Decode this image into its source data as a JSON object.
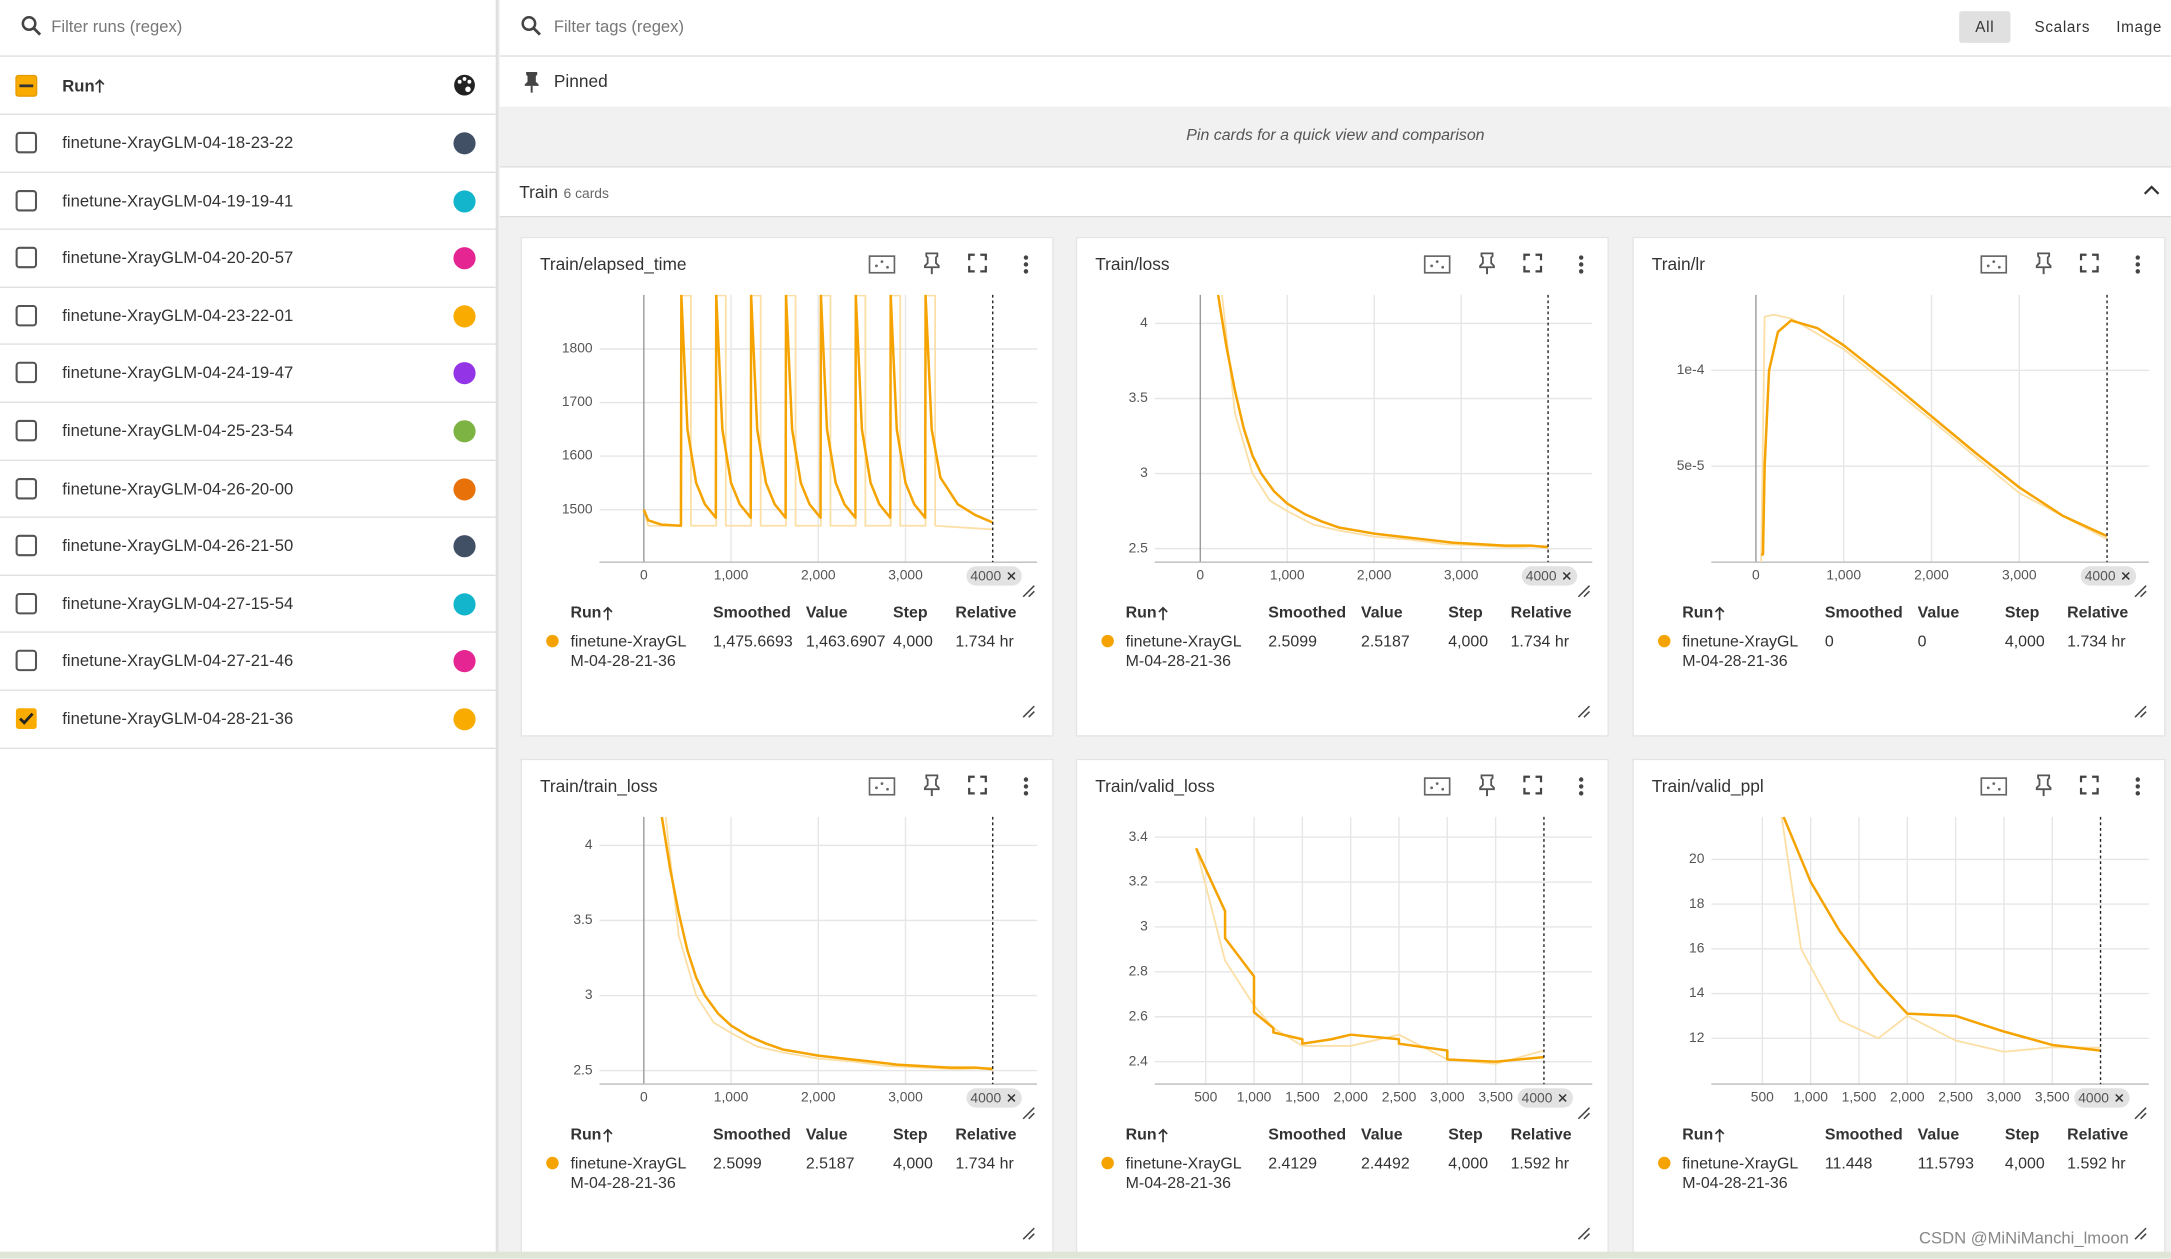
{
  "runs_panel": {
    "filter_placeholder": "Filter runs (regex)",
    "header": "Run",
    "runs": [
      {
        "name": "finetune-XrayGLM-04-18-23-22",
        "color": "#425066",
        "checked": false
      },
      {
        "name": "finetune-XrayGLM-04-19-19-41",
        "color": "#12b5cb",
        "checked": false
      },
      {
        "name": "finetune-XrayGLM-04-20-20-57",
        "color": "#e52592",
        "checked": false
      },
      {
        "name": "finetune-XrayGLM-04-23-22-01",
        "color": "#f9ab00",
        "checked": false
      },
      {
        "name": "finetune-XrayGLM-04-24-19-47",
        "color": "#9334e6",
        "checked": false
      },
      {
        "name": "finetune-XrayGLM-04-25-23-54",
        "color": "#7cb342",
        "checked": false
      },
      {
        "name": "finetune-XrayGLM-04-26-20-00",
        "color": "#e8710a",
        "checked": false
      },
      {
        "name": "finetune-XrayGLM-04-26-21-50",
        "color": "#425066",
        "checked": false
      },
      {
        "name": "finetune-XrayGLM-04-27-15-54",
        "color": "#12b5cb",
        "checked": false
      },
      {
        "name": "finetune-XrayGLM-04-27-21-46",
        "color": "#e52592",
        "checked": false
      },
      {
        "name": "finetune-XrayGLM-04-28-21-36",
        "color": "#f9ab00",
        "checked": true
      }
    ]
  },
  "tags_bar": {
    "filter_placeholder": "Filter tags (regex)",
    "tabs": [
      "All",
      "Scalars",
      "Image"
    ],
    "active_tab": 0
  },
  "pinned": {
    "title": "Pinned",
    "hint": "Pin cards for a quick view and comparison"
  },
  "group": {
    "name": "Train",
    "count": "6 cards"
  },
  "table_columns": [
    "Run",
    "Smoothed",
    "Value",
    "Step",
    "Relative"
  ],
  "cards": [
    {
      "type": "line",
      "title": "Train/elapsed_time",
      "xlim": [
        -508,
        4508
      ],
      "xticks": [
        0,
        {
          "value": 1000,
          "label": "1,000"
        },
        {
          "value": 2000,
          "label": "2,000"
        },
        {
          "value": 3000,
          "label": "3,000"
        }
      ],
      "ylim": [
        1402,
        1901
      ],
      "yticks": [
        1500,
        1600,
        1700,
        1800
      ],
      "step_marker": 4000,
      "color": "#f5a300",
      "raw_color": "#fcdfa6",
      "smoothed": {
        "x": [
          0,
          50,
          200,
          425,
          430,
          500,
          600,
          700,
          825,
          830,
          900,
          1000,
          1100,
          1225,
          1230,
          1300,
          1400,
          1500,
          1625,
          1630,
          1700,
          1800,
          1900,
          2025,
          2030,
          2100,
          2200,
          2300,
          2425,
          2430,
          2500,
          2600,
          2700,
          2825,
          2830,
          2900,
          3000,
          3100,
          3225,
          3230,
          3300,
          3400,
          3600,
          3800,
          4000
        ],
        "values": [
          1500,
          1480,
          1472,
          1470,
          1900,
          1650,
          1550,
          1510,
          1485,
          1900,
          1650,
          1550,
          1510,
          1485,
          1900,
          1650,
          1550,
          1510,
          1485,
          1900,
          1650,
          1550,
          1510,
          1485,
          1900,
          1650,
          1550,
          1510,
          1485,
          1900,
          1650,
          1550,
          1510,
          1485,
          1900,
          1650,
          1550,
          1510,
          1485,
          1900,
          1650,
          1560,
          1510,
          1490,
          1476
        ]
      },
      "raw": {
        "x": [
          0,
          50,
          430,
          430,
          540,
          540,
          830,
          830,
          940,
          940,
          1230,
          1230,
          1340,
          1340,
          1630,
          1630,
          1740,
          1740,
          2030,
          2030,
          2140,
          2140,
          2430,
          2430,
          2540,
          2540,
          2830,
          2830,
          2940,
          2940,
          3230,
          3230,
          3340,
          3340,
          4000
        ],
        "values": [
          1500,
          1470,
          1470,
          1900,
          1900,
          1470,
          1470,
          1900,
          1900,
          1470,
          1470,
          1900,
          1900,
          1470,
          1470,
          1900,
          1900,
          1470,
          1470,
          1900,
          1900,
          1470,
          1470,
          1900,
          1900,
          1470,
          1470,
          1900,
          1900,
          1470,
          1470,
          1900,
          1900,
          1470,
          1463
        ]
      },
      "row": {
        "run": "finetune-XrayGLM-04-28-21-36",
        "smoothed": "1,475.6693",
        "value": "1,463.6907",
        "step": "4,000",
        "relative": "1.734 hr"
      }
    },
    {
      "type": "line",
      "title": "Train/loss",
      "xlim": [
        -524,
        4508
      ],
      "xticks": [
        0,
        {
          "value": 1000,
          "label": "1,000"
        },
        {
          "value": 2000,
          "label": "2,000"
        },
        {
          "value": 3000,
          "label": "3,000"
        }
      ],
      "ylim": [
        2.41,
        4.19
      ],
      "yticks": [
        2.5,
        3,
        3.5,
        4
      ],
      "step_marker": 4000,
      "color": "#f5a300",
      "raw_color": "#fcdfa6",
      "smoothed": {
        "x": [
          206,
          300,
          400,
          500,
          600,
          700,
          850,
          1000,
          1200,
          1400,
          1600,
          1800,
          2000,
          2300,
          2600,
          2900,
          3200,
          3500,
          3800,
          4000
        ],
        "values": [
          4.19,
          3.85,
          3.55,
          3.3,
          3.12,
          3.0,
          2.88,
          2.8,
          2.73,
          2.68,
          2.64,
          2.62,
          2.6,
          2.58,
          2.56,
          2.54,
          2.53,
          2.52,
          2.52,
          2.51
        ]
      },
      "raw": {
        "x": [
          250,
          400,
          600,
          800,
          1000,
          1300,
          1600,
          2000,
          2400,
          2800,
          3200,
          3600,
          4000
        ],
        "values": [
          4.19,
          3.4,
          3.0,
          2.82,
          2.75,
          2.66,
          2.62,
          2.58,
          2.56,
          2.53,
          2.52,
          2.51,
          2.52
        ]
      },
      "row": {
        "run": "finetune-XrayGLM-04-28-21-36",
        "smoothed": "2.5099",
        "value": "2.5187",
        "step": "4,000",
        "relative": "1.734 hr"
      }
    },
    {
      "type": "line",
      "title": "Train/lr",
      "xlim": [
        -508,
        4476
      ],
      "xticks": [
        0,
        {
          "value": 1000,
          "label": "1,000"
        },
        {
          "value": 2000,
          "label": "2,000"
        },
        {
          "value": 3000,
          "label": "3,000"
        }
      ],
      "ylim": [
        0,
        0.0001393
      ],
      "yticks": [
        {
          "value": 5e-05,
          "label": "5e-5"
        },
        {
          "value": 0.0001,
          "label": "1e-4"
        }
      ],
      "step_marker": 4000,
      "color": "#f5a300",
      "raw_color": "#fcdfa6",
      "smoothed": {
        "x": [
          60,
          80,
          100,
          150,
          250,
          400,
          700,
          1000,
          1500,
          2000,
          2500,
          3000,
          3500,
          4000
        ],
        "values": [
          4e-06,
          4e-06,
          5e-05,
          0.0001,
          0.00012,
          0.000126,
          0.000122,
          0.000113,
          9.5e-05,
          7.6e-05,
          5.7e-05,
          3.9e-05,
          2.4e-05,
          1.36e-05
        ]
      },
      "raw": {
        "x": [
          60,
          100,
          200,
          400,
          1000,
          2000,
          3000,
          4000
        ],
        "values": [
          0,
          0.000128,
          0.000129,
          0.000127,
          0.000111,
          7.4e-05,
          3.6e-05,
          1.2e-05
        ]
      },
      "row": {
        "run": "finetune-XrayGLM-04-28-21-36",
        "smoothed": "0",
        "value": "0",
        "step": "4,000",
        "relative": "1.734 hr"
      }
    },
    {
      "type": "line",
      "title": "Train/train_loss",
      "xlim": [
        -508,
        4508
      ],
      "xticks": [
        0,
        {
          "value": 1000,
          "label": "1,000"
        },
        {
          "value": 2000,
          "label": "2,000"
        },
        {
          "value": 3000,
          "label": "3,000"
        }
      ],
      "ylim": [
        2.41,
        4.19
      ],
      "yticks": [
        2.5,
        3,
        3.5,
        4
      ],
      "step_marker": 4000,
      "color": "#f5a300",
      "raw_color": "#fcdfa6",
      "smoothed": {
        "x": [
          206,
          300,
          400,
          500,
          600,
          700,
          850,
          1000,
          1200,
          1400,
          1600,
          1800,
          2000,
          2300,
          2600,
          2900,
          3200,
          3500,
          3800,
          4000
        ],
        "values": [
          4.19,
          3.85,
          3.55,
          3.3,
          3.12,
          3.0,
          2.88,
          2.8,
          2.73,
          2.68,
          2.64,
          2.62,
          2.6,
          2.58,
          2.56,
          2.54,
          2.53,
          2.52,
          2.52,
          2.51
        ]
      },
      "raw": {
        "x": [
          250,
          400,
          600,
          800,
          1000,
          1300,
          1600,
          2000,
          2400,
          2800,
          3200,
          3600,
          4000
        ],
        "values": [
          4.19,
          3.4,
          3.0,
          2.82,
          2.75,
          2.66,
          2.62,
          2.58,
          2.56,
          2.53,
          2.52,
          2.51,
          2.52
        ]
      },
      "row": {
        "run": "finetune-XrayGLM-04-28-21-36",
        "smoothed": "2.5099",
        "value": "2.5187",
        "step": "4,000",
        "relative": "1.734 hr"
      }
    },
    {
      "type": "line",
      "title": "Train/valid_loss",
      "xlim": [
        -28,
        4500
      ],
      "xticks": [
        500,
        {
          "value": 1000,
          "label": "1,000"
        },
        {
          "value": 1500,
          "label": "1,500"
        },
        {
          "value": 2000,
          "label": "2,000"
        },
        {
          "value": 2500,
          "label": "2,500"
        },
        {
          "value": 3000,
          "label": "3,000"
        },
        {
          "value": 3500,
          "label": "3,500"
        }
      ],
      "ylim": [
        2.3,
        3.49
      ],
      "yticks": [
        2.4,
        2.6,
        2.8,
        3,
        3.2,
        3.4
      ],
      "step_marker": 4000,
      "color": "#f5a300",
      "raw_color": "#fcdfa6",
      "smoothed": {
        "x": [
          400,
          700,
          700,
          1000,
          1000,
          1200,
          1200,
          1500,
          1500,
          1800,
          2000,
          2500,
          2500,
          3000,
          3000,
          3500,
          4000
        ],
        "values": [
          3.35,
          3.07,
          2.95,
          2.78,
          2.62,
          2.55,
          2.53,
          2.5,
          2.48,
          2.5,
          2.52,
          2.5,
          2.48,
          2.45,
          2.41,
          2.4,
          2.42
        ]
      },
      "raw": {
        "x": [
          400,
          700,
          1000,
          1200,
          1500,
          2000,
          2500,
          3000,
          3500,
          4000
        ],
        "values": [
          3.35,
          2.85,
          2.65,
          2.55,
          2.47,
          2.47,
          2.52,
          2.41,
          2.39,
          2.45
        ]
      },
      "row": {
        "run": "finetune-XrayGLM-04-28-21-36",
        "smoothed": "2.4129",
        "value": "2.4492",
        "step": "4,000",
        "relative": "1.592 hr"
      }
    },
    {
      "type": "line",
      "title": "Train/valid_ppl",
      "xlim": [
        -28,
        4500
      ],
      "xticks": [
        500,
        {
          "value": 1000,
          "label": "1,000"
        },
        {
          "value": 1500,
          "label": "1,500"
        },
        {
          "value": 2000,
          "label": "2,000"
        },
        {
          "value": 2500,
          "label": "2,500"
        },
        {
          "value": 3000,
          "label": "3,000"
        },
        {
          "value": 3500,
          "label": "3,500"
        }
      ],
      "ylim": [
        9.95,
        21.9
      ],
      "yticks": [
        12,
        14,
        16,
        18,
        20
      ],
      "step_marker": 4000,
      "color": "#f5a300",
      "raw_color": "#fcdfa6",
      "smoothed": {
        "x": [
          720,
          1000,
          1300,
          1700,
          2000,
          2500,
          3000,
          3500,
          4000
        ],
        "values": [
          21.9,
          19,
          16.8,
          14.5,
          13.1,
          13.0,
          12.3,
          11.7,
          11.45
        ]
      },
      "raw": {
        "x": [
          700,
          900,
          1300,
          1700,
          2000,
          2500,
          3000,
          3500,
          4000
        ],
        "values": [
          21.9,
          16,
          12.8,
          12.0,
          13.0,
          11.9,
          11.4,
          11.6,
          11.58
        ]
      },
      "row": {
        "run": "finetune-XrayGLM-04-28-21-36",
        "smoothed": "11.448",
        "value": "11.5793",
        "step": "4,000",
        "relative": "1.592 hr"
      }
    }
  ],
  "watermark": "CSDN @MiNiManchi_lmoon"
}
